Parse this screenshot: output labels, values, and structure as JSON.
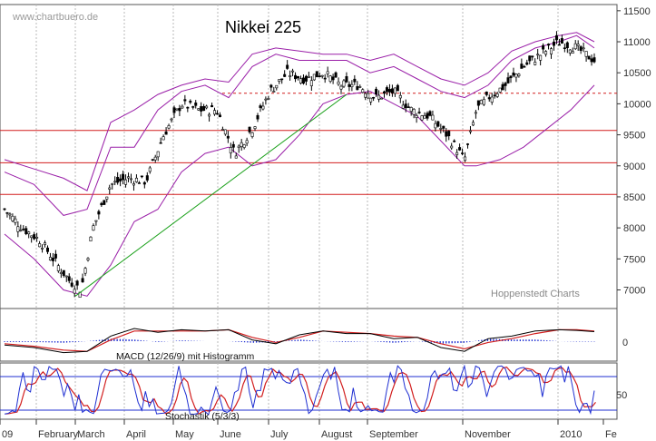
{
  "chart_data": {
    "type": "candlestick",
    "watermark": "www.chartbuero.de",
    "title": "Nikkei 225",
    "source_note": "Hoppenstedt Charts",
    "grid": true,
    "x_axis": {
      "labels": [
        "09",
        "February",
        "March",
        "April",
        "May",
        "June",
        "July",
        "August",
        "September",
        "November",
        "2010",
        "Fe"
      ]
    },
    "price_panel": {
      "ylim": [
        6700,
        11600
      ],
      "y_ticks": [
        7000,
        7500,
        8000,
        8500,
        9000,
        9500,
        10000,
        10500,
        11000,
        11500
      ],
      "horizontal_lines": [
        {
          "value": 10170,
          "style": "dashed",
          "color": "#d21f1f"
        },
        {
          "value": 9570,
          "style": "solid",
          "color": "#d21f1f"
        },
        {
          "value": 9050,
          "style": "solid",
          "color": "#d21f1f"
        },
        {
          "value": 8540,
          "style": "solid",
          "color": "#d21f1f"
        }
      ],
      "trendline": {
        "from": [
          0.12,
          6900
        ],
        "to": [
          0.58,
          10150
        ],
        "color": "#1aa01a"
      },
      "close_series": {
        "x": [
          0.0,
          0.03,
          0.06,
          0.09,
          0.11,
          0.13,
          0.15,
          0.18,
          0.21,
          0.24,
          0.27,
          0.3,
          0.33,
          0.36,
          0.39,
          0.42,
          0.45,
          0.48,
          0.51,
          0.54,
          0.57,
          0.6,
          0.63,
          0.66,
          0.69,
          0.72,
          0.75,
          0.78,
          0.8,
          0.82,
          0.85,
          0.88,
          0.91,
          0.94,
          0.97,
          1.0
        ],
        "values": [
          8300,
          8000,
          7800,
          7400,
          7150,
          7000,
          8000,
          8700,
          8800,
          8750,
          9500,
          10000,
          9900,
          9900,
          9200,
          9600,
          10200,
          10500,
          10400,
          10500,
          10300,
          10300,
          10100,
          10200,
          9900,
          9800,
          9500,
          9100,
          9900,
          10100,
          10300,
          10600,
          10800,
          11000,
          10900,
          10700
        ]
      },
      "bollinger_upper": {
        "x": [
          0.0,
          0.05,
          0.1,
          0.14,
          0.18,
          0.22,
          0.26,
          0.3,
          0.34,
          0.38,
          0.42,
          0.46,
          0.5,
          0.54,
          0.58,
          0.62,
          0.66,
          0.7,
          0.74,
          0.78,
          0.82,
          0.86,
          0.9,
          0.94,
          0.97,
          1.0
        ],
        "values": [
          8900,
          8700,
          8200,
          8300,
          9300,
          9300,
          9900,
          10200,
          10300,
          10100,
          10600,
          10800,
          10700,
          10700,
          10700,
          10500,
          10600,
          10400,
          10200,
          10100,
          10300,
          10700,
          10900,
          11000,
          11100,
          10900
        ]
      },
      "bollinger_lower": {
        "x": [
          0.0,
          0.05,
          0.1,
          0.14,
          0.18,
          0.22,
          0.26,
          0.3,
          0.34,
          0.38,
          0.42,
          0.46,
          0.5,
          0.54,
          0.58,
          0.62,
          0.66,
          0.7,
          0.74,
          0.78,
          0.8,
          0.84,
          0.88,
          0.92,
          0.96,
          1.0
        ],
        "values": [
          7900,
          7500,
          7000,
          6900,
          7400,
          8100,
          8300,
          8900,
          9200,
          9300,
          9000,
          9100,
          9500,
          10000,
          10150,
          10200,
          10000,
          9800,
          9400,
          9000,
          9000,
          9100,
          9300,
          9600,
          9900,
          10300
        ]
      },
      "upper_band_outer": {
        "x": [
          0.0,
          0.05,
          0.1,
          0.14,
          0.18,
          0.22,
          0.26,
          0.3,
          0.34,
          0.38,
          0.42,
          0.46,
          0.5,
          0.54,
          0.58,
          0.62,
          0.66,
          0.7,
          0.74,
          0.78,
          0.82,
          0.86,
          0.9,
          0.94,
          0.97,
          1.0
        ],
        "values": [
          9100,
          8950,
          8800,
          8600,
          9700,
          9900,
          10150,
          10300,
          10400,
          10350,
          10800,
          10900,
          10850,
          10800,
          10800,
          10700,
          10800,
          10600,
          10400,
          10300,
          10500,
          10850,
          11000,
          11100,
          11150,
          11000
        ]
      }
    },
    "macd_panel": {
      "label": "MACD (12/26/9) mit Histogramm",
      "y_ticks": [
        0
      ],
      "macd": {
        "x": [
          0.0,
          0.05,
          0.1,
          0.14,
          0.18,
          0.22,
          0.26,
          0.3,
          0.34,
          0.38,
          0.42,
          0.46,
          0.5,
          0.54,
          0.58,
          0.62,
          0.66,
          0.7,
          0.74,
          0.78,
          0.82,
          0.86,
          0.9,
          0.94,
          0.97,
          1.0
        ],
        "values": [
          -0.3,
          -0.5,
          -0.9,
          -0.8,
          0.4,
          1.0,
          0.7,
          0.9,
          0.8,
          0.9,
          0.1,
          -0.2,
          0.5,
          0.8,
          0.6,
          0.6,
          0.2,
          0.3,
          -0.5,
          -0.8,
          0.2,
          0.4,
          0.8,
          0.9,
          0.85,
          0.75
        ]
      },
      "signal": {
        "x": [
          0.0,
          0.05,
          0.1,
          0.14,
          0.18,
          0.22,
          0.26,
          0.3,
          0.34,
          0.38,
          0.42,
          0.46,
          0.5,
          0.54,
          0.58,
          0.62,
          0.66,
          0.7,
          0.74,
          0.78,
          0.82,
          0.86,
          0.9,
          0.94,
          0.97,
          1.0
        ],
        "values": [
          -0.2,
          -0.4,
          -0.7,
          -0.8,
          0.1,
          0.8,
          0.8,
          0.8,
          0.8,
          0.9,
          0.3,
          -0.1,
          0.3,
          0.8,
          0.7,
          0.6,
          0.4,
          0.3,
          -0.2,
          -0.6,
          -0.1,
          0.2,
          0.6,
          0.9,
          0.9,
          0.8
        ]
      }
    },
    "stochastic_panel": {
      "label": "Stochastik (5/3/3)",
      "y_ticks": [
        50
      ],
      "levels": [
        80,
        20
      ]
    }
  }
}
